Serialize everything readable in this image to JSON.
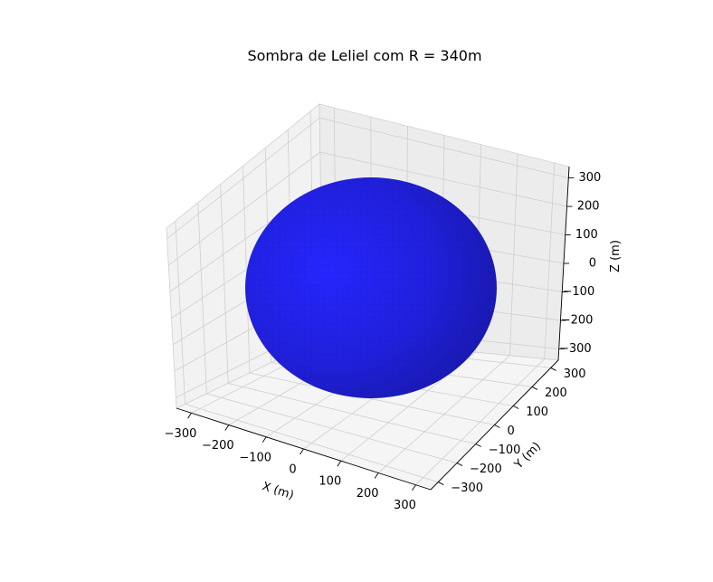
{
  "chart_data": {
    "type": "surface3d",
    "title": "Sombra de Leliel com R = 340m",
    "xlabel": "X (m)",
    "ylabel": "Y (m)",
    "zlabel": "Z (m)",
    "xticks": [
      "−300",
      "−200",
      "−100",
      "0",
      "100",
      "200",
      "300"
    ],
    "yticks": [
      "−300",
      "−200",
      "−100",
      "0",
      "100",
      "200",
      "300"
    ],
    "zticks": [
      "−300",
      "−200",
      "−100",
      "0",
      "100",
      "200",
      "300"
    ],
    "xlim": [
      -340,
      340
    ],
    "ylim": [
      -340,
      340
    ],
    "zlim": [
      -340,
      340
    ],
    "surface": {
      "shape": "sphere",
      "radius": 340,
      "center": [
        0,
        0,
        0
      ]
    },
    "color": "#0000ff",
    "grid": true
  }
}
